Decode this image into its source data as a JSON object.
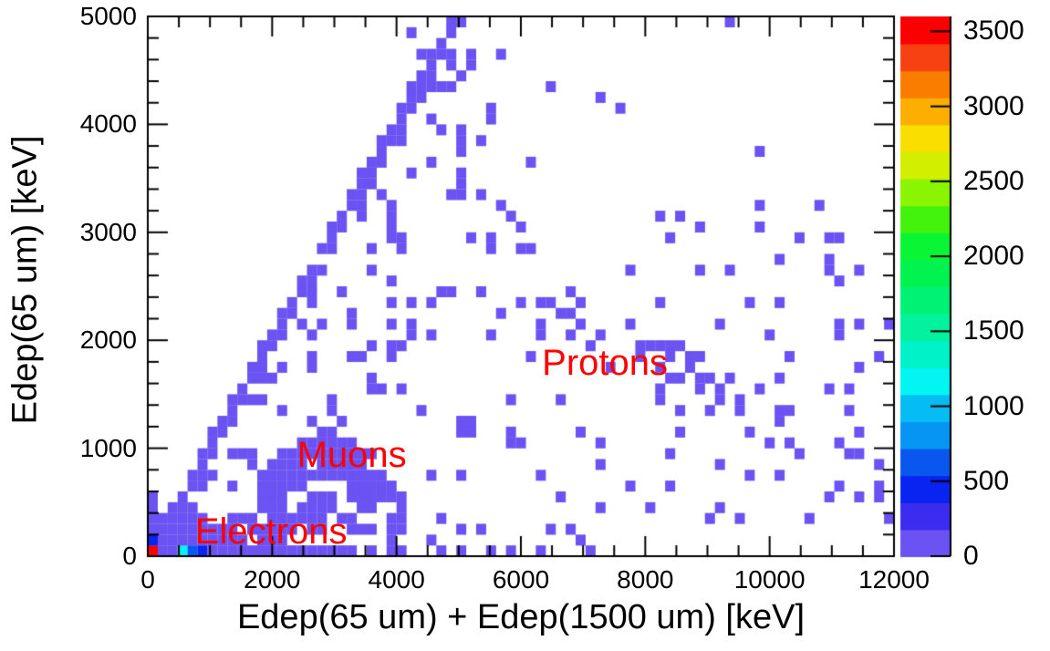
{
  "chart_data": {
    "type": "heatmap",
    "title": "",
    "xlabel": "Edep(65 um) + Edep(1500 um) [keV]",
    "ylabel": "Edep(65 um) [keV]",
    "xlim": [
      0,
      12000
    ],
    "ylim": [
      0,
      5000
    ],
    "zlim": [
      0,
      3600
    ],
    "x_major_ticks": [
      0,
      2000,
      4000,
      6000,
      8000,
      10000,
      12000
    ],
    "x_minor_step": 500,
    "y_major_ticks": [
      0,
      1000,
      2000,
      3000,
      4000,
      5000
    ],
    "y_minor_step": 200,
    "grid": false,
    "frame_color": "#000000",
    "background": "#ffffff",
    "bins": {
      "nx": 75,
      "ny": 50,
      "x_bin_width_kev": 160,
      "y_bin_width_kev": 100
    },
    "colorbar": {
      "position": "right",
      "ticks": [
        0,
        500,
        1000,
        1500,
        2000,
        2500,
        3000,
        3500
      ],
      "levels": 20,
      "colors_bottom_to_top": [
        "#6B52F2",
        "#3B2CF0",
        "#0724F0",
        "#0A57F0",
        "#0795F3",
        "#06BCF3",
        "#01F5F3",
        "#00F2C8",
        "#03F2A0",
        "#00F275",
        "#00F34F",
        "#0AF635",
        "#43F30D",
        "#8BF400",
        "#D2EF00",
        "#F8DF00",
        "#FCAF00",
        "#FA7D00",
        "#F64213",
        "#FA0000"
      ]
    },
    "annotations": [
      {
        "label": "Electrons",
        "color": "#FF0000",
        "x_kev": 760,
        "y_kev_top": 400
      },
      {
        "label": "Muons",
        "color": "#FF0000",
        "x_kev": 2400,
        "y_kev_top": 1105
      },
      {
        "label": "Protons",
        "color": "#FF0000",
        "x_kev": 6340,
        "y_kev_top": 1960
      }
    ],
    "notable_cells": [
      {
        "x_kev": 40,
        "y_kev": 40,
        "value": 3550,
        "note": "maximum bin (red) at origin"
      },
      {
        "x_kev": 40,
        "y_kev": 140,
        "value": 450,
        "note": "deep blue bin above origin"
      },
      {
        "x_kev": 560,
        "y_kev": 40,
        "value": 1150,
        "note": "cyan bin on bottom row"
      },
      {
        "x_kev": 700,
        "y_kev": 40,
        "value": 620,
        "note": "blue bin on bottom row"
      },
      {
        "x_kev": 860,
        "y_kev": 40,
        "value": 380,
        "note": "blue-violet bin on bottom row"
      }
    ],
    "structure": {
      "diagonal_band": {
        "description": "cells along y = x up to (5000,5000)",
        "fill_prob": 0.93,
        "extra_neighbor_prob": 0.22
      },
      "electron_blob": {
        "core_heights_bins": [
          6,
          5,
          5,
          4,
          4,
          4,
          3,
          3
        ],
        "mid_prob": 0.7,
        "tail_prob": 0.5,
        "halo_prob": 0.17,
        "triangle_prob": 0.05
      },
      "muon_arc": {
        "x0": 1600,
        "x1": 4480,
        "peak_x": 2900,
        "peak_y": 930,
        "curvature": 350,
        "half_width": 200,
        "core_prob": 0.8,
        "halo_prob": 0.3,
        "bridge_prob": 0.45
      },
      "proton_band": {
        "x0": 4160,
        "x1": 12000,
        "amplitude": 33000,
        "power": 1.4,
        "sigma_frac": 0.085,
        "sigma_min": 130,
        "prob_near": 0.92,
        "prob_mid": 0.72,
        "prob_far": 0.55
      },
      "diag_proton_merge": {
        "x0": 3440,
        "x1": 5120,
        "y_bottom": 2550,
        "prob": 0.15
      },
      "bottom_rows": {
        "row0_solid_bins": 21,
        "row0_mid_bins": 27,
        "row0_sparse_bins": 36,
        "row1_bins": 14
      }
    },
    "scatter_regions": [
      {
        "n": 55,
        "x0": 1500,
        "x1": 6500,
        "y0": 300,
        "y1": 2600
      },
      {
        "n": 45,
        "x0": 6500,
        "x1": 12000,
        "y0": 300,
        "y1": 2300
      },
      {
        "n": 18,
        "x0": 7000,
        "x1": 11600,
        "y0": 2300,
        "y1": 3300
      },
      {
        "n": 12,
        "x0": 4300,
        "x1": 7200,
        "y0": 0,
        "y1": 300
      },
      {
        "n": 10,
        "x0": 2000,
        "x1": 4600,
        "y0": 1200,
        "y1": 2400
      }
    ],
    "outlier_cells_kev": [
      [
        5690,
        4670
      ],
      [
        6430,
        4330
      ],
      [
        7260,
        4240
      ],
      [
        9360,
        4950
      ],
      [
        9890,
        3780
      ],
      [
        7620,
        4100
      ],
      [
        11450,
        2680
      ],
      [
        5480,
        4180
      ],
      [
        4960,
        4420
      ],
      [
        6200,
        3640
      ],
      [
        8230,
        3120
      ],
      [
        8470,
        2920
      ],
      [
        11330,
        1540
      ],
      [
        10400,
        900
      ],
      [
        9700,
        700
      ]
    ],
    "seed": 20240217,
    "default_cell_value": 90
  }
}
